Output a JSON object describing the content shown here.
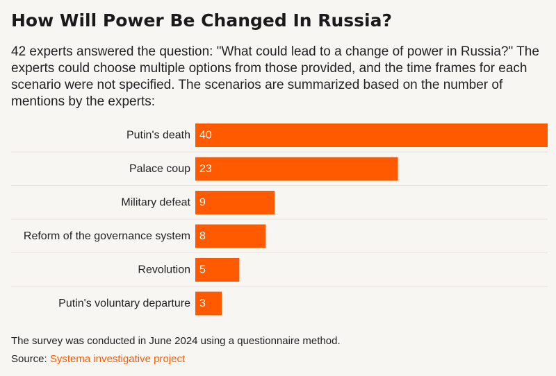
{
  "title": "How Will Power Be Changed In Russia?",
  "subtitle": "42 experts answered the question: \"What could lead to a change of power in Russia?\" The experts could choose multiple options from those provided, and the time frames for each scenario were not specified. The scenarios are summarized based on the number of mentions by the experts:",
  "footer": {
    "note": "The survey was conducted in June 2024 using a questionnaire method.",
    "source_label": "Source: ",
    "source_link": "Systema investigative project"
  },
  "colors": {
    "bar": "#ff5a00",
    "bar_label": "#ffffff",
    "category_label": "#222222",
    "separator": "#e6e3de",
    "link": "#ff5a00"
  },
  "chart_data": {
    "type": "bar",
    "orientation": "horizontal",
    "categories": [
      "Putin's death",
      "Palace coup",
      "Military defeat",
      "Reform of the governance system",
      "Revolution",
      "Putin's voluntary departure"
    ],
    "values": [
      40,
      23,
      9,
      8,
      5,
      3
    ],
    "xlim": [
      0,
      40
    ],
    "data_labels": true,
    "grid": false,
    "legend": "none"
  }
}
